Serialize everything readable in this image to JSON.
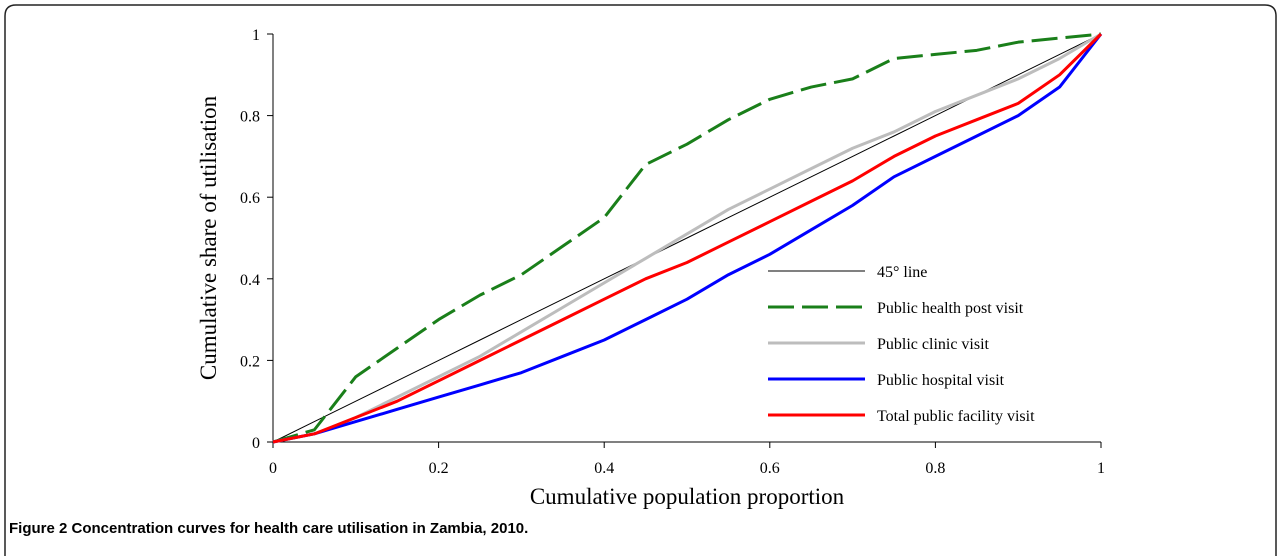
{
  "chart_data": {
    "type": "line",
    "caption": "Figure 2 Concentration curves for health care utilisation in Zambia, 2010.",
    "xlabel": "Cumulative population proportion",
    "ylabel": "Cumulative share of utilisation",
    "x": [
      0,
      0.05,
      0.1,
      0.15,
      0.2,
      0.25,
      0.3,
      0.35,
      0.4,
      0.45,
      0.5,
      0.55,
      0.6,
      0.65,
      0.7,
      0.75,
      0.8,
      0.85,
      0.9,
      0.95,
      1
    ],
    "xlim": [
      0,
      1
    ],
    "ylim": [
      0,
      1
    ],
    "xticks": [
      0,
      0.2,
      0.4,
      0.6,
      0.8,
      1
    ],
    "yticks": [
      0,
      0.2,
      0.4,
      0.6,
      0.8,
      1
    ],
    "series": [
      {
        "name": "45° line",
        "color": "#000000",
        "width": 1,
        "dashed": false,
        "values": [
          0,
          0.05,
          0.1,
          0.15,
          0.2,
          0.25,
          0.3,
          0.35,
          0.4,
          0.45,
          0.5,
          0.55,
          0.6,
          0.65,
          0.7,
          0.75,
          0.8,
          0.85,
          0.9,
          0.95,
          1
        ]
      },
      {
        "name": "Public health post visit",
        "color": "#1a7f1a",
        "width": 3,
        "dashed": true,
        "values": [
          0,
          0.03,
          0.16,
          0.23,
          0.3,
          0.36,
          0.41,
          0.48,
          0.55,
          0.68,
          0.73,
          0.79,
          0.84,
          0.87,
          0.89,
          0.94,
          0.95,
          0.96,
          0.98,
          0.99,
          1
        ]
      },
      {
        "name": "Public clinic visit",
        "color": "#bdbdbd",
        "width": 3,
        "dashed": false,
        "values": [
          0,
          0.02,
          0.06,
          0.11,
          0.16,
          0.21,
          0.27,
          0.33,
          0.39,
          0.45,
          0.51,
          0.57,
          0.62,
          0.67,
          0.72,
          0.76,
          0.81,
          0.85,
          0.89,
          0.94,
          1
        ]
      },
      {
        "name": "Public hospital visit",
        "color": "#0000ff",
        "width": 3,
        "dashed": false,
        "values": [
          0,
          0.02,
          0.05,
          0.08,
          0.11,
          0.14,
          0.17,
          0.21,
          0.25,
          0.3,
          0.35,
          0.41,
          0.46,
          0.52,
          0.58,
          0.65,
          0.7,
          0.75,
          0.8,
          0.87,
          1
        ]
      },
      {
        "name": "Total public facility visit",
        "color": "#ff0000",
        "width": 3,
        "dashed": false,
        "values": [
          0,
          0.02,
          0.06,
          0.1,
          0.15,
          0.2,
          0.25,
          0.3,
          0.35,
          0.4,
          0.44,
          0.49,
          0.54,
          0.59,
          0.64,
          0.7,
          0.75,
          0.79,
          0.83,
          0.9,
          1
        ]
      }
    ]
  }
}
